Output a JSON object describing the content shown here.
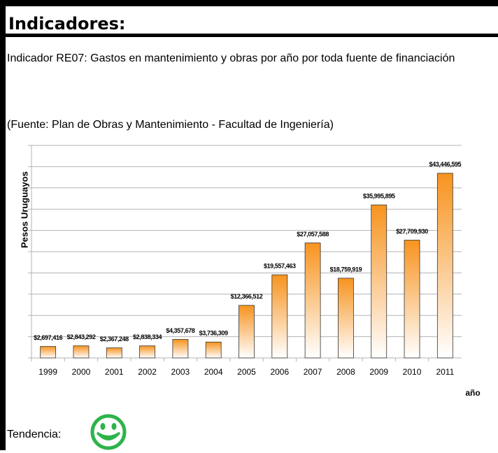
{
  "header": "Indicadores:",
  "description": "Indicador RE07: Gastos en mantenimiento y obras por año por toda fuente de financiación",
  "source": "(Fuente: Plan de Obras y Mantenimiento - Facultad de Ingeniería)",
  "footer": "Tendencia:",
  "chart_data": {
    "type": "bar",
    "y_label": "Pesos Uruguayos",
    "x_label": "año",
    "categories": [
      "1999",
      "2000",
      "2001",
      "2002",
      "2003",
      "2004",
      "2005",
      "2006",
      "2007",
      "2008",
      "2009",
      "2010",
      "2011"
    ],
    "values": [
      2697416,
      2843292,
      2367248,
      2838334,
      4357678,
      3736309,
      12366512,
      19557463,
      27057588,
      18759919,
      35995895,
      27709930,
      43446595
    ],
    "value_labels": [
      "$2,697,416",
      "$2,843,292",
      "$2,367,248",
      "$2,838,334",
      "$4,357,678",
      "$3,736,309",
      "$12,366,512",
      "$19,557,463",
      "$27,057,588",
      "$18,759,919",
      "$35,995,895",
      "$27,709,930",
      "$43,446,595"
    ],
    "color": "#f7931e",
    "ylim": [
      0,
      50000000
    ],
    "yticks": [
      0,
      5000000,
      10000000,
      15000000,
      20000000,
      25000000,
      30000000,
      35000000,
      40000000,
      45000000,
      50000000
    ],
    "grid": true
  }
}
